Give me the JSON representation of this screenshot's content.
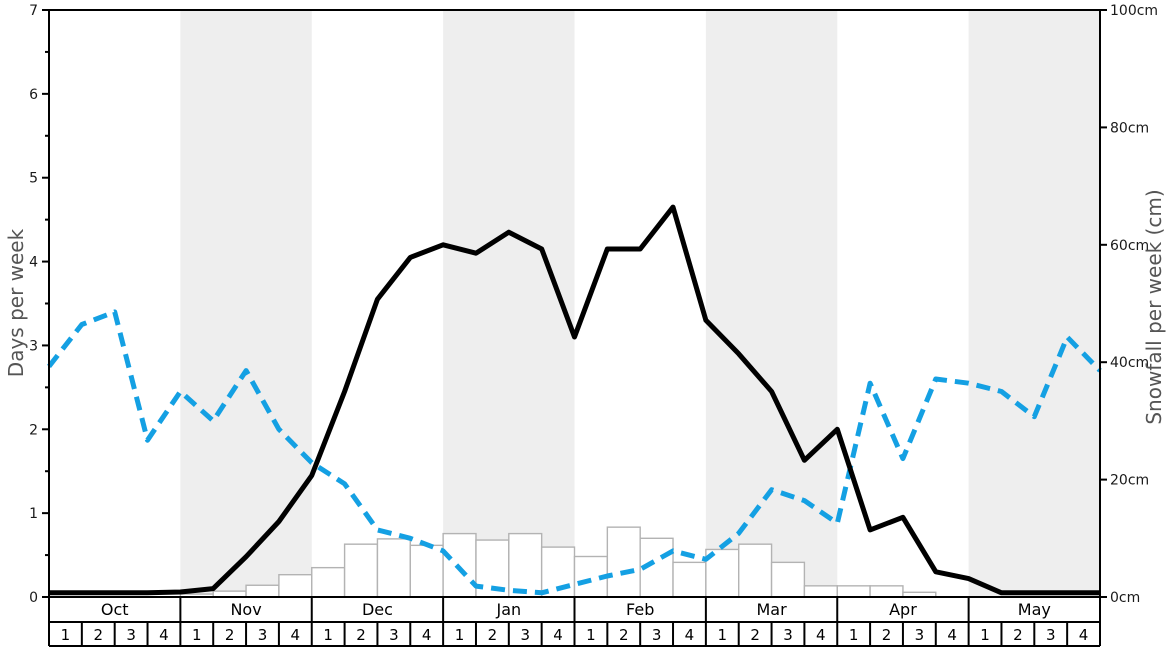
{
  "chart_data": {
    "type": "line",
    "title": "",
    "left_axis": {
      "label": "Days per week",
      "min": 0,
      "max": 7,
      "major_tick": 1,
      "minor_tick": 0.5,
      "tick_labels": [
        "0",
        "1",
        "2",
        "3",
        "4",
        "5",
        "6",
        "7"
      ]
    },
    "right_axis": {
      "label": "Snowfall per week (cm)",
      "min": 0,
      "max": 100,
      "major_tick": 20,
      "tick_labels": [
        "0cm",
        "20cm",
        "40cm",
        "60cm",
        "80cm",
        "100cm"
      ]
    },
    "months": [
      "Oct",
      "Nov",
      "Dec",
      "Jan",
      "Feb",
      "Mar",
      "Apr",
      "May"
    ],
    "week_labels": [
      "1",
      "2",
      "3",
      "4"
    ],
    "shaded_month_indices": [
      1,
      3,
      5,
      7
    ],
    "x_note": "line series have 33 points plotted at weekly boundaries (8 months x 4 weeks + right edge); bars have 32 weekly values on the right axis",
    "series": [
      {
        "name": "black_line",
        "style": "solid",
        "axis": "left",
        "values": [
          0.05,
          0.05,
          0.05,
          0.05,
          0.06,
          0.1,
          0.48,
          0.9,
          1.45,
          2.45,
          3.55,
          4.05,
          4.2,
          4.1,
          4.35,
          4.15,
          3.1,
          4.15,
          4.15,
          4.65,
          3.3,
          2.9,
          2.45,
          1.63,
          2.0,
          0.8,
          0.95,
          0.3,
          0.22,
          0.05,
          0.05,
          0.05,
          0.05
        ]
      },
      {
        "name": "blue_dashed_line",
        "style": "dashed",
        "axis": "left",
        "values": [
          2.75,
          3.25,
          3.4,
          1.87,
          2.45,
          2.1,
          2.7,
          2.0,
          1.6,
          1.35,
          0.8,
          0.7,
          0.55,
          0.13,
          0.08,
          0.05,
          0.15,
          0.25,
          0.33,
          0.55,
          0.45,
          0.76,
          1.28,
          1.15,
          0.88,
          2.55,
          1.65,
          2.6,
          2.55,
          2.45,
          2.15,
          3.1,
          2.7
        ]
      },
      {
        "name": "snowfall_bars_cm",
        "style": "bar",
        "axis": "right",
        "values": [
          0,
          0,
          0,
          0,
          0.5,
          1.0,
          2.0,
          3.8,
          5.0,
          9.0,
          9.9,
          8.8,
          10.8,
          9.7,
          10.8,
          8.5,
          6.9,
          11.9,
          10.0,
          5.9,
          8.1,
          9.0,
          5.9,
          1.9,
          1.9,
          1.9,
          0.8,
          0,
          0,
          0,
          0,
          0
        ]
      }
    ]
  },
  "colors": {
    "band_gray": "#eeeeee",
    "bar_fill": "#ffffff",
    "bar_border": "#b3b3b3",
    "blue_line": "#14a0e3",
    "black_line": "#000000",
    "axis_line": "#000000",
    "tick_label": "#1a1a1a",
    "axis_title": "#555555",
    "table_border": "#000000",
    "table_text": "#000000"
  }
}
